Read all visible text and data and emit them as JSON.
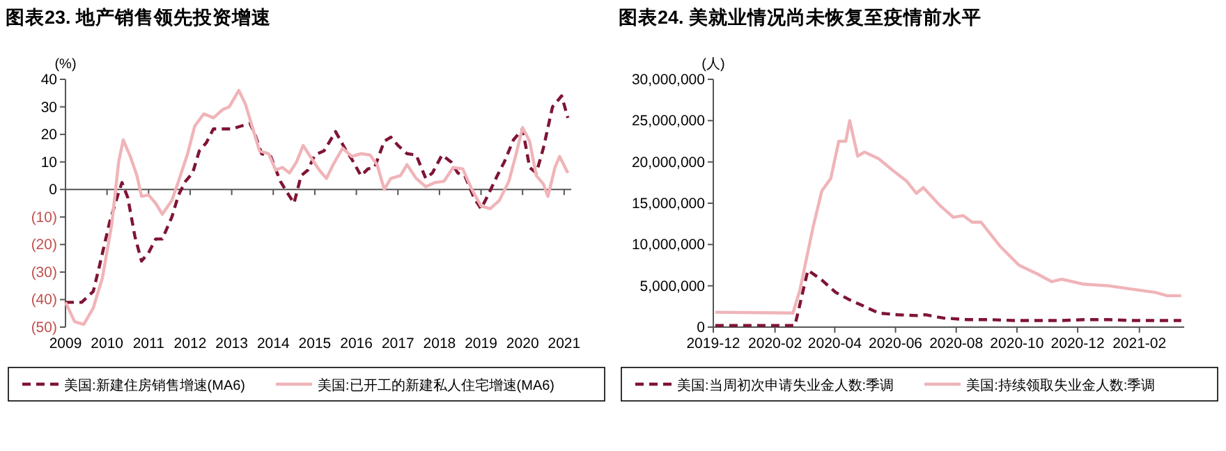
{
  "chart_data": [
    {
      "type": "line",
      "title": "图表23. 地产销售领先投资增速",
      "ylabel": "(%)",
      "xlim": [
        2009,
        2021.17
      ],
      "ylim": [
        -50,
        40
      ],
      "xticks": [
        2009,
        2010,
        2011,
        2012,
        2013,
        2014,
        2015,
        2016,
        2017,
        2018,
        2019,
        2020,
        2021
      ],
      "yticks": [
        {
          "value": -50,
          "label": "(50)"
        },
        {
          "value": -40,
          "label": "(40)"
        },
        {
          "value": -30,
          "label": "(30)"
        },
        {
          "value": -20,
          "label": "(20)"
        },
        {
          "value": -10,
          "label": "(10)"
        },
        0,
        10,
        20,
        30,
        40
      ],
      "legend": "bottom",
      "series": [
        {
          "name": "美国:新建住房销售增速(MA6)",
          "color": "#7f1434",
          "line_style": "dashed",
          "x": [
            2009.0,
            2009.39,
            2009.67,
            2009.83,
            2010.06,
            2010.22,
            2010.28,
            2010.36,
            2010.5,
            2010.67,
            2010.83,
            2011.0,
            2011.17,
            2011.33,
            2011.56,
            2011.72,
            2011.89,
            2012.06,
            2012.22,
            2012.39,
            2012.56,
            2012.78,
            2013.0,
            2013.22,
            2013.44,
            2013.56,
            2013.72,
            2013.94,
            2014.17,
            2014.33,
            2014.5,
            2014.67,
            2014.83,
            2015.0,
            2015.22,
            2015.5,
            2015.72,
            2015.89,
            2016.11,
            2016.28,
            2016.44,
            2016.67,
            2016.83,
            2017.0,
            2017.22,
            2017.44,
            2017.67,
            2017.83,
            2018.06,
            2018.28,
            2018.44,
            2018.61,
            2018.83,
            2019.0,
            2019.17,
            2019.39,
            2019.56,
            2019.78,
            2020.0,
            2020.17,
            2020.33,
            2020.5,
            2020.72,
            2020.94,
            2021.09
          ],
          "values": [
            -41,
            -41,
            -37,
            -27,
            -12,
            -4,
            -1,
            2.5,
            -3,
            -17,
            -26,
            -23,
            -18,
            -18,
            -10,
            -2,
            3,
            6,
            14,
            17,
            22,
            22,
            22,
            23,
            24,
            20,
            13,
            12,
            3,
            -1,
            -5,
            5,
            7,
            12.5,
            14,
            21,
            15,
            11,
            5,
            7.5,
            8,
            17.5,
            19,
            16,
            13,
            12.5,
            4,
            6,
            12.5,
            10,
            6,
            5,
            -3,
            -7,
            -2,
            5,
            10,
            18,
            22,
            8,
            6,
            15,
            30,
            34,
            26
          ]
        },
        {
          "name": "美国:已开工的新建私人住宅增速(MA6)",
          "color": "#f0b4b8",
          "line_style": "solid",
          "x": [
            2009.0,
            2009.22,
            2009.44,
            2009.67,
            2009.89,
            2010.11,
            2010.28,
            2010.39,
            2010.56,
            2010.72,
            2010.83,
            2011.0,
            2011.17,
            2011.33,
            2011.56,
            2011.72,
            2011.94,
            2012.11,
            2012.33,
            2012.56,
            2012.78,
            2012.94,
            2013.17,
            2013.33,
            2013.5,
            2013.67,
            2013.89,
            2014.06,
            2014.22,
            2014.39,
            2014.56,
            2014.72,
            2014.89,
            2015.11,
            2015.28,
            2015.44,
            2015.67,
            2015.89,
            2016.11,
            2016.33,
            2016.5,
            2016.67,
            2016.83,
            2017.06,
            2017.22,
            2017.44,
            2017.67,
            2017.89,
            2018.11,
            2018.33,
            2018.56,
            2018.78,
            2019.0,
            2019.22,
            2019.44,
            2019.67,
            2019.83,
            2020.0,
            2020.17,
            2020.33,
            2020.5,
            2020.61,
            2020.78,
            2020.89,
            2021.09
          ],
          "values": [
            -41,
            -48,
            -49,
            -43,
            -32,
            -13,
            10,
            18,
            12,
            5,
            -2.5,
            -2,
            -5,
            -9,
            -4,
            3,
            13,
            23,
            27.5,
            26,
            29,
            30,
            36,
            31,
            22.5,
            14,
            13,
            7,
            8,
            6,
            10,
            16,
            12,
            7,
            4,
            9,
            15,
            12,
            13,
            12.5,
            9,
            0,
            4,
            5,
            9,
            4,
            1,
            2.5,
            3,
            8,
            7.5,
            0,
            -6,
            -7,
            -4,
            3,
            12,
            22.5,
            17.5,
            5,
            2,
            -2.5,
            8,
            12,
            6
          ]
        }
      ]
    },
    {
      "type": "line",
      "title": "图表24. 美就业情况尚未恢复至疫情前水平",
      "ylabel": "(人)",
      "xlim": [
        "2019-12-01",
        "2021-03-18"
      ],
      "ylim": [
        0,
        30000000
      ],
      "xticks": [
        "2019-12",
        "2020-02",
        "2020-04",
        "2020-06",
        "2020-08",
        "2020-10",
        "2020-12",
        "2021-02"
      ],
      "yticks": [
        0,
        {
          "value": 5000000,
          "label": "5,000,000"
        },
        {
          "value": 10000000,
          "label": "10,000,000"
        },
        {
          "value": 15000000,
          "label": "15,000,000"
        },
        {
          "value": 20000000,
          "label": "20,000,000"
        },
        {
          "value": 25000000,
          "label": "25,000,000"
        },
        {
          "value": 30000000,
          "label": "30,000,000"
        }
      ],
      "legend": "bottom",
      "series": [
        {
          "name": "美国:当周初次申请失业金人数:季调",
          "color": "#7f1434",
          "line_style": "dashed",
          "x": [
            "2019-12-03",
            "2020-02-21",
            "2020-03-05",
            "2020-03-19",
            "2020-04-02",
            "2020-04-16",
            "2020-05-01",
            "2020-05-15",
            "2020-06-03",
            "2020-06-22",
            "2020-07-01",
            "2020-07-19",
            "2020-08-13",
            "2020-09-05",
            "2020-09-28",
            "2020-10-22",
            "2020-11-15",
            "2020-12-07",
            "2021-01-01",
            "2021-01-24",
            "2021-02-17",
            "2021-03-15"
          ],
          "values": [
            200000,
            200000,
            6900000,
            5700000,
            4200000,
            3300000,
            2500000,
            1700000,
            1500000,
            1400000,
            1500000,
            1100000,
            900000,
            900000,
            800000,
            800000,
            800000,
            900000,
            900000,
            800000,
            800000,
            800000
          ]
        },
        {
          "name": "美国:持续领取失业金人数:季调",
          "color": "#f0b4b8",
          "line_style": "solid",
          "x": [
            "2019-12-03",
            "2020-02-19",
            "2020-02-26",
            "2020-03-10",
            "2020-03-19",
            "2020-03-28",
            "2020-04-05",
            "2020-04-12",
            "2020-04-16",
            "2020-04-24",
            "2020-05-01",
            "2020-05-15",
            "2020-05-29",
            "2020-06-12",
            "2020-06-22",
            "2020-06-29",
            "2020-07-15",
            "2020-07-29",
            "2020-08-08",
            "2020-08-17",
            "2020-08-26",
            "2020-09-14",
            "2020-10-03",
            "2020-10-22",
            "2020-11-05",
            "2020-11-15",
            "2020-12-07",
            "2021-01-01",
            "2021-01-24",
            "2021-02-17",
            "2021-03-01",
            "2021-03-15"
          ],
          "values": [
            1800000,
            1700000,
            4500000,
            12000000,
            16500000,
            18000000,
            22500000,
            22500000,
            25000000,
            20700000,
            21200000,
            20400000,
            19000000,
            17700000,
            16200000,
            16900000,
            14800000,
            13300000,
            13500000,
            12700000,
            12700000,
            9800000,
            7500000,
            6400000,
            5500000,
            5800000,
            5200000,
            5000000,
            4600000,
            4200000,
            3800000,
            3800000
          ]
        }
      ]
    }
  ]
}
